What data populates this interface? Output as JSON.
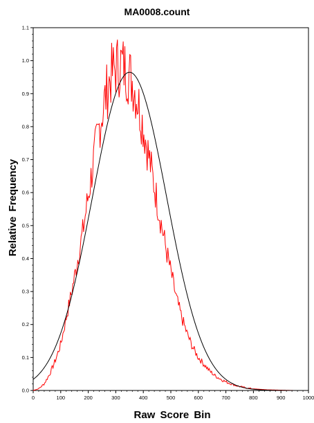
{
  "chart_data": {
    "type": "line",
    "title": "MA0008.count",
    "xlabel": "Raw Score Bin",
    "ylabel": "Relative Frequency",
    "xlim": [
      0,
      1000
    ],
    "ylim": [
      0,
      1.1
    ],
    "x_ticks": [
      0,
      100,
      200,
      300,
      400,
      500,
      600,
      700,
      800,
      900,
      1000
    ],
    "y_ticks": [
      "0.0",
      "0.1",
      "0.2",
      "0.3",
      "0.4",
      "0.5",
      "0.6",
      "0.7",
      "0.8",
      "0.9",
      "1.0",
      "1.1"
    ],
    "x_tick_labels": [
      "0",
      "100",
      "200",
      "300",
      "400",
      "500",
      "600",
      "700",
      "800",
      "900",
      "1000"
    ],
    "grid": false,
    "legend": "none",
    "series": [
      {
        "color": "#ff0000",
        "style": "jagged histogram-like line",
        "x": [
          0,
          20,
          40,
          60,
          80,
          100,
          120,
          140,
          160,
          180,
          200,
          220,
          240,
          260,
          280,
          300,
          320,
          340,
          360,
          380,
          400,
          420,
          440,
          460,
          480,
          500,
          520,
          540,
          560,
          580,
          600,
          620,
          640,
          660,
          680,
          700,
          720,
          740,
          760,
          780,
          800,
          850,
          900,
          950,
          1000
        ],
        "values": [
          0.0,
          0.005,
          0.02,
          0.05,
          0.09,
          0.14,
          0.22,
          0.3,
          0.39,
          0.48,
          0.59,
          0.7,
          0.8,
          0.88,
          0.95,
          0.98,
          0.99,
          0.97,
          0.94,
          0.88,
          0.8,
          0.71,
          0.62,
          0.53,
          0.44,
          0.36,
          0.28,
          0.22,
          0.17,
          0.13,
          0.1,
          0.08,
          0.06,
          0.045,
          0.035,
          0.026,
          0.02,
          0.014,
          0.01,
          0.007,
          0.005,
          0.002,
          0.001,
          0.0,
          0.0
        ]
      },
      {
        "color": "#000000",
        "style": "smooth fitted normal curve",
        "mean": 350,
        "sd": 135,
        "peak": 0.965
      }
    ]
  }
}
